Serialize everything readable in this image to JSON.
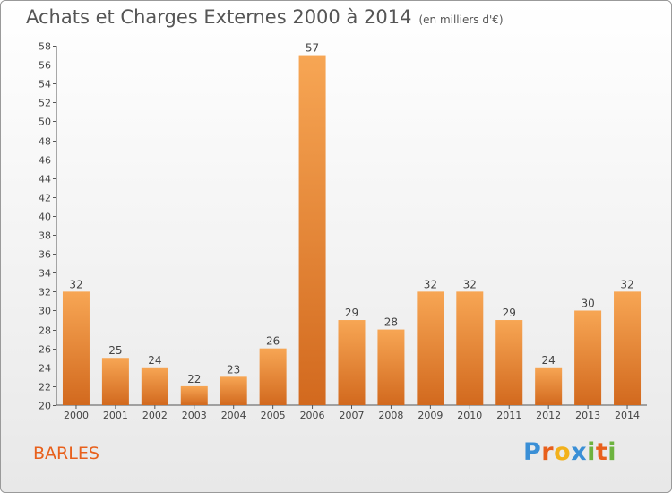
{
  "chart_data": {
    "type": "bar",
    "title": "Achats et Charges Externes 2000 à 2014",
    "subtitle": "(en milliers d'€)",
    "categories": [
      "2000",
      "2001",
      "2002",
      "2003",
      "2004",
      "2005",
      "2006",
      "2007",
      "2008",
      "2009",
      "2010",
      "2011",
      "2012",
      "2013",
      "2014"
    ],
    "values": [
      32,
      25,
      24,
      22,
      23,
      26,
      57,
      29,
      28,
      32,
      32,
      29,
      24,
      30,
      32
    ],
    "ylim": [
      20,
      58
    ],
    "yticks": [
      20,
      22,
      24,
      26,
      28,
      30,
      32,
      34,
      36,
      38,
      40,
      42,
      44,
      46,
      48,
      50,
      52,
      54,
      56,
      58
    ],
    "grid": false,
    "bar_color_top": "#f7a654",
    "bar_color_bottom": "#d2691e"
  },
  "commune": "BARLES",
  "logo": {
    "letters": [
      "P",
      "r",
      "o",
      "x",
      "i",
      "t",
      "i"
    ],
    "colors": [
      "#3a8fd6",
      "#e8601c",
      "#f2b11c",
      "#3a8fd6",
      "#6db33f",
      "#e8601c",
      "#6db33f"
    ]
  }
}
